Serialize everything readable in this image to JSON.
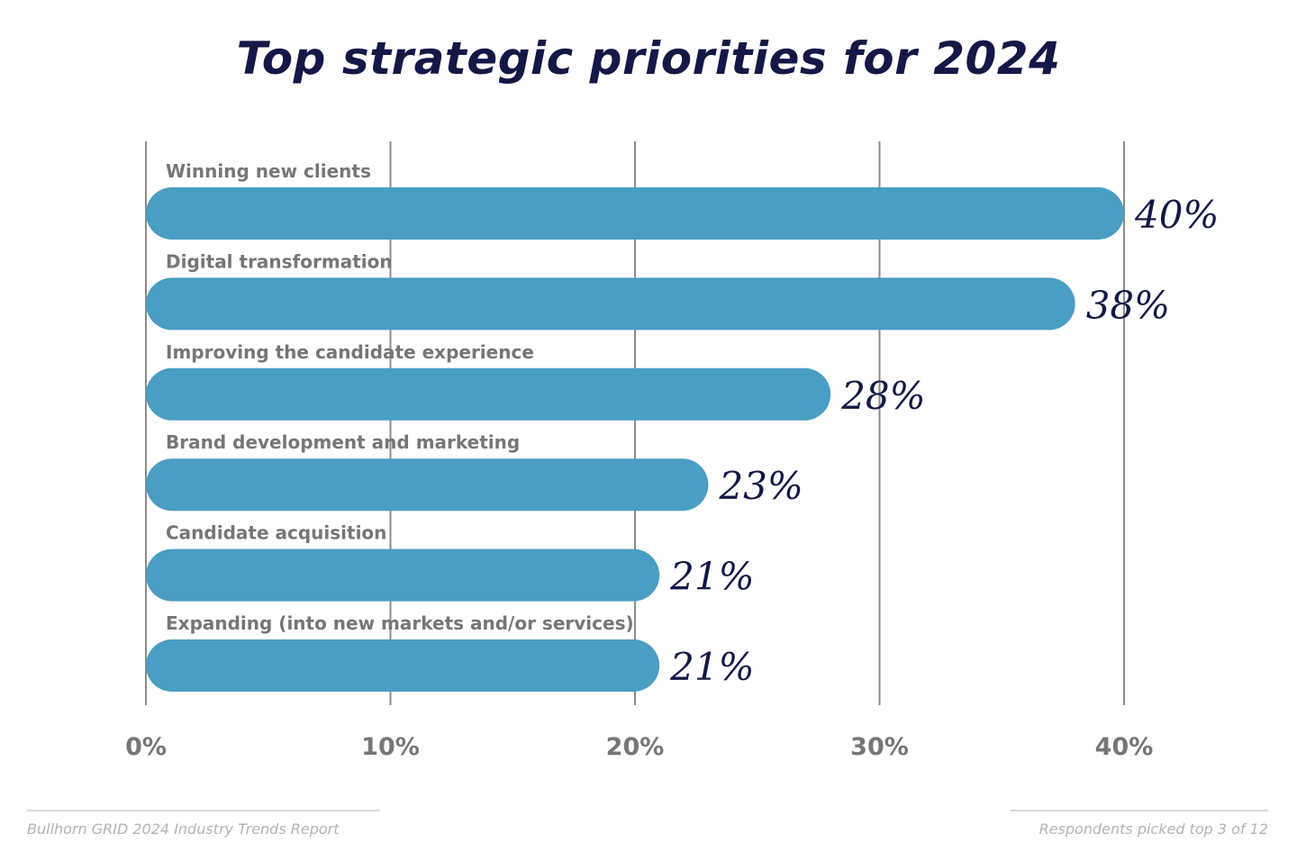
{
  "chart_data": {
    "type": "bar",
    "orientation": "horizontal",
    "title": "Top strategic priorities for 2024",
    "categories": [
      "Winning new clients",
      "Digital transformation",
      "Improving the candidate experience",
      "Brand development and marketing",
      "Candidate acquisition",
      "Expanding (into new markets and/or services)"
    ],
    "values": [
      40,
      38,
      28,
      23,
      21,
      21
    ],
    "value_labels": [
      "40%",
      "38%",
      "28%",
      "23%",
      "21%",
      "21%"
    ],
    "xlim": [
      0,
      40
    ],
    "x_ticks": [
      0,
      10,
      20,
      30,
      40
    ],
    "x_tick_labels": [
      "0%",
      "10%",
      "20%",
      "30%",
      "40%"
    ],
    "grid": true,
    "legend": "none",
    "colors": {
      "bar": "#4a9dc3",
      "title": "#141846",
      "value_label": "#141846",
      "category_label": "#767676",
      "tick_label": "#767676",
      "gridline": "#8c8c8c"
    }
  },
  "footer": {
    "source": "Bullhorn GRID 2024 Industry Trends Report",
    "note": "Respondents picked top 3 of 12"
  }
}
